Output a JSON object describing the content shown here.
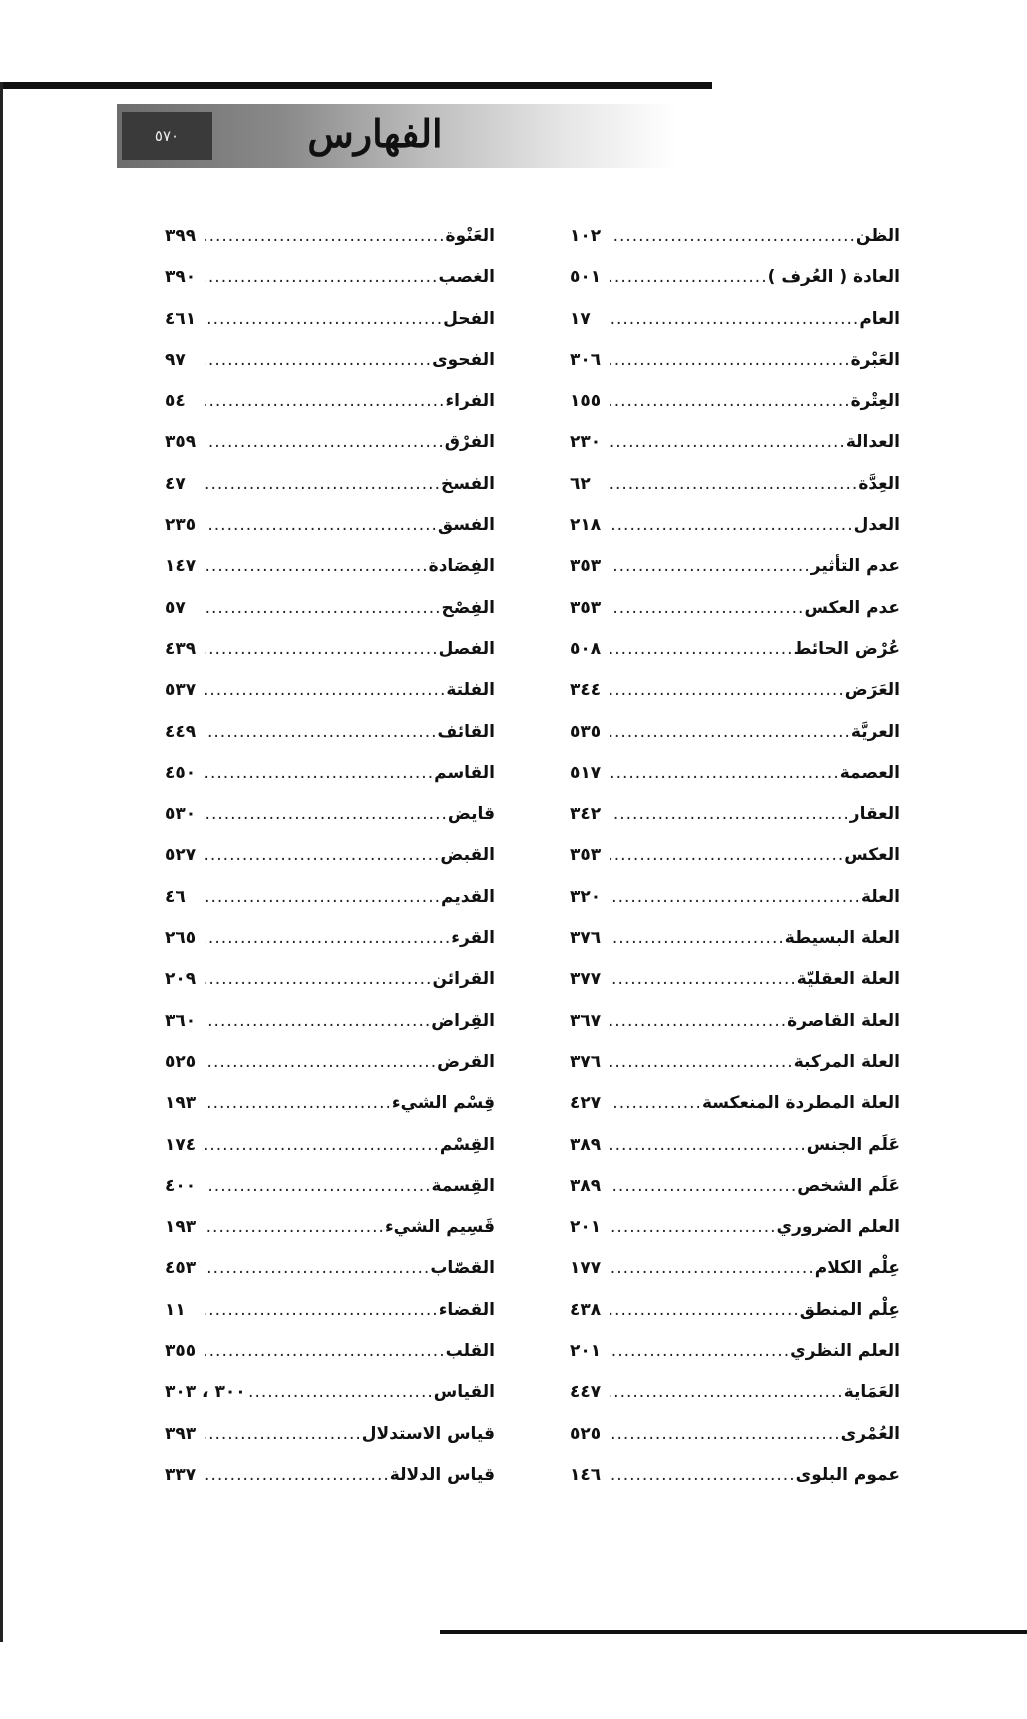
{
  "header": {
    "title": "الفهارس",
    "page_number": "٥٧٠"
  },
  "right_column": [
    {
      "term": "الظن",
      "page": "١٠٢"
    },
    {
      "term": "العادة ( العُرف )",
      "page": "٥٠١"
    },
    {
      "term": "العام",
      "page": "١٧"
    },
    {
      "term": "العَبْرة",
      "page": "٣٠٦"
    },
    {
      "term": "العِتْرة",
      "page": "١٥٥"
    },
    {
      "term": "العدالة",
      "page": "٢٣٠"
    },
    {
      "term": "العِدَّة",
      "page": "٦٢"
    },
    {
      "term": "العدل",
      "page": "٢١٨"
    },
    {
      "term": "عدم التأثير",
      "page": "٣٥٣"
    },
    {
      "term": "عدم العكس",
      "page": "٣٥٣"
    },
    {
      "term": "عُرْض الحائط",
      "page": "٥٠٨"
    },
    {
      "term": "العَرَض",
      "page": "٣٤٤"
    },
    {
      "term": "العريَّة",
      "page": "٥٣٥"
    },
    {
      "term": "العصمة",
      "page": "٥١٧"
    },
    {
      "term": "العقار",
      "page": "٣٤٢"
    },
    {
      "term": "العكس",
      "page": "٣٥٣"
    },
    {
      "term": "العلة",
      "page": "٣٢٠"
    },
    {
      "term": "العلة البسيطة",
      "page": "٣٧٦"
    },
    {
      "term": "العلة العقليّة",
      "page": "٣٧٧"
    },
    {
      "term": "العلة القاصرة",
      "page": "٣٦٧"
    },
    {
      "term": "العلة المركبة",
      "page": "٣٧٦"
    },
    {
      "term": "العلة المطردة المنعكسة",
      "page": "٤٢٧"
    },
    {
      "term": "عَلَم الجنس",
      "page": "٣٨٩"
    },
    {
      "term": "عَلَم الشخص",
      "page": "٣٨٩"
    },
    {
      "term": "العلم الضروري",
      "page": "٢٠١"
    },
    {
      "term": "عِلْم الكلام",
      "page": "١٧٧"
    },
    {
      "term": "عِلْم المنطق",
      "page": "٤٣٨"
    },
    {
      "term": "العلم النظري",
      "page": "٢٠١"
    },
    {
      "term": "العَمَاية",
      "page": "٤٤٧"
    },
    {
      "term": "العُمْرى",
      "page": "٥٢٥"
    },
    {
      "term": "عموم البلوى",
      "page": "١٤٦"
    }
  ],
  "left_column": [
    {
      "term": "العَنْوة",
      "page": "٣٩٩"
    },
    {
      "term": "الغصب",
      "page": "٣٩٠"
    },
    {
      "term": "الفحل",
      "page": "٤٦١"
    },
    {
      "term": "الفحوى",
      "page": "٩٧"
    },
    {
      "term": "الفراء",
      "page": "٥٤"
    },
    {
      "term": "الفرْق",
      "page": "٣٥٩"
    },
    {
      "term": "الفسخ",
      "page": "٤٧"
    },
    {
      "term": "الفسق",
      "page": "٢٣٥"
    },
    {
      "term": "الفِصَادة",
      "page": "١٤٧"
    },
    {
      "term": "الفِصْح",
      "page": "٥٧"
    },
    {
      "term": "الفصل",
      "page": "٤٣٩"
    },
    {
      "term": "الفلتة",
      "page": "٥٣٧"
    },
    {
      "term": "القائف",
      "page": "٤٤٩"
    },
    {
      "term": "القاسم",
      "page": "٤٥٠"
    },
    {
      "term": "قايض",
      "page": "٥٣٠"
    },
    {
      "term": "القبض",
      "page": "٥٢٧"
    },
    {
      "term": "القديم",
      "page": "٤٦"
    },
    {
      "term": "القرء",
      "page": "٢٦٥"
    },
    {
      "term": "القرائن",
      "page": "٢٠٩"
    },
    {
      "term": "القِراض",
      "page": "٣٦٠"
    },
    {
      "term": "القرض",
      "page": "٥٢٥"
    },
    {
      "term": "قِسْم الشيء",
      "page": "١٩٣"
    },
    {
      "term": "القِسْم",
      "page": "١٧٤"
    },
    {
      "term": "القِسمة",
      "page": "٤٠٠"
    },
    {
      "term": "قَسِيم الشيء",
      "page": "١٩٣"
    },
    {
      "term": "القصّاب",
      "page": "٤٥٣"
    },
    {
      "term": "القضاء",
      "page": "١١"
    },
    {
      "term": "القلب",
      "page": "٣٥٥"
    },
    {
      "term": "القياس",
      "page": "٣٠٠ ، ٣٠٣"
    },
    {
      "term": "قياس الاستدلال",
      "page": "٣٩٣"
    },
    {
      "term": "قياس الدلالة",
      "page": "٣٣٧"
    }
  ]
}
